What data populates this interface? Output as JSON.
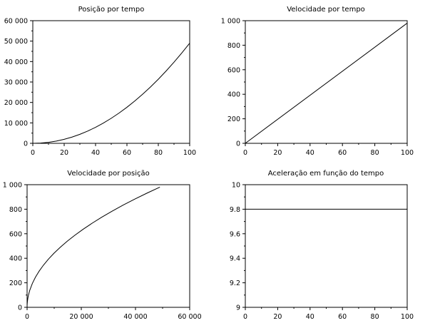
{
  "chart_data": [
    {
      "type": "line",
      "title": "Posição por tempo",
      "xlabel": "",
      "ylabel": "",
      "xlim": [
        0,
        100
      ],
      "ylim": [
        0,
        60000
      ],
      "x_ticks": [
        0,
        20,
        40,
        60,
        80,
        100
      ],
      "x_tick_labels": [
        "0",
        "20",
        "40",
        "60",
        "80",
        "100"
      ],
      "y_ticks": [
        0,
        10000,
        20000,
        30000,
        40000,
        50000,
        60000
      ],
      "y_tick_labels": [
        "0",
        "10 000",
        "20 000",
        "30 000",
        "40 000",
        "50 000",
        "60 000"
      ],
      "grid": false,
      "series": [
        {
          "x": [
            0,
            5,
            10,
            15,
            20,
            25,
            30,
            35,
            40,
            45,
            50,
            55,
            60,
            65,
            70,
            75,
            80,
            85,
            90,
            95,
            100
          ],
          "values": [
            0,
            123,
            490,
            1103,
            1960,
            3063,
            4410,
            6003,
            7840,
            9923,
            12250,
            14823,
            17640,
            20703,
            24010,
            27563,
            31360,
            35403,
            39690,
            44223,
            49000
          ]
        }
      ]
    },
    {
      "type": "line",
      "title": "Velocidade por tempo",
      "xlabel": "",
      "ylabel": "",
      "xlim": [
        0,
        100
      ],
      "ylim": [
        0,
        1000
      ],
      "x_ticks": [
        0,
        20,
        40,
        60,
        80,
        100
      ],
      "x_tick_labels": [
        "0",
        "20",
        "40",
        "60",
        "80",
        "100"
      ],
      "y_ticks": [
        0,
        200,
        400,
        600,
        800,
        1000
      ],
      "y_tick_labels": [
        "0",
        "200",
        "400",
        "600",
        "800",
        "1 000"
      ],
      "grid": false,
      "series": [
        {
          "x": [
            0,
            100
          ],
          "values": [
            0,
            980
          ]
        }
      ]
    },
    {
      "type": "line",
      "title": "Velocidade por posição",
      "xlabel": "",
      "ylabel": "",
      "xlim": [
        0,
        60000
      ],
      "ylim": [
        0,
        1000
      ],
      "x_ticks": [
        0,
        20000,
        40000,
        60000
      ],
      "x_tick_labels": [
        "0",
        "20 000",
        "40 000",
        "60 000"
      ],
      "y_ticks": [
        0,
        200,
        400,
        600,
        800,
        1000
      ],
      "y_tick_labels": [
        "0",
        "200",
        "400",
        "600",
        "800",
        "1 000"
      ],
      "grid": false,
      "series": [
        {
          "x": [
            0,
            5,
            20,
            50,
            123,
            300,
            490,
            1000,
            1960,
            3063,
            4410,
            6003,
            7840,
            9923,
            12250,
            14823,
            17640,
            20703,
            24010,
            27563,
            31360,
            35403,
            39690,
            44223,
            49000
          ],
          "values": [
            0,
            10,
            20,
            31,
            49,
            77,
            98,
            140,
            196,
            245,
            294,
            343,
            392,
            441,
            490,
            539,
            588,
            637,
            686,
            735,
            784,
            833,
            882,
            931,
            980
          ]
        }
      ]
    },
    {
      "type": "line",
      "title": "Aceleração em função do tempo",
      "xlabel": "",
      "ylabel": "",
      "xlim": [
        0,
        100
      ],
      "ylim": [
        9,
        10
      ],
      "x_ticks": [
        0,
        20,
        40,
        60,
        80,
        100
      ],
      "x_tick_labels": [
        "0",
        "20",
        "40",
        "60",
        "80",
        "100"
      ],
      "y_ticks": [
        9,
        9.2,
        9.4,
        9.6,
        9.8,
        10
      ],
      "y_tick_labels": [
        "9",
        "9.2",
        "9.4",
        "9.6",
        "9.8",
        "10"
      ],
      "grid": false,
      "series": [
        {
          "x": [
            0,
            100
          ],
          "values": [
            9.8,
            9.8
          ]
        }
      ]
    }
  ]
}
